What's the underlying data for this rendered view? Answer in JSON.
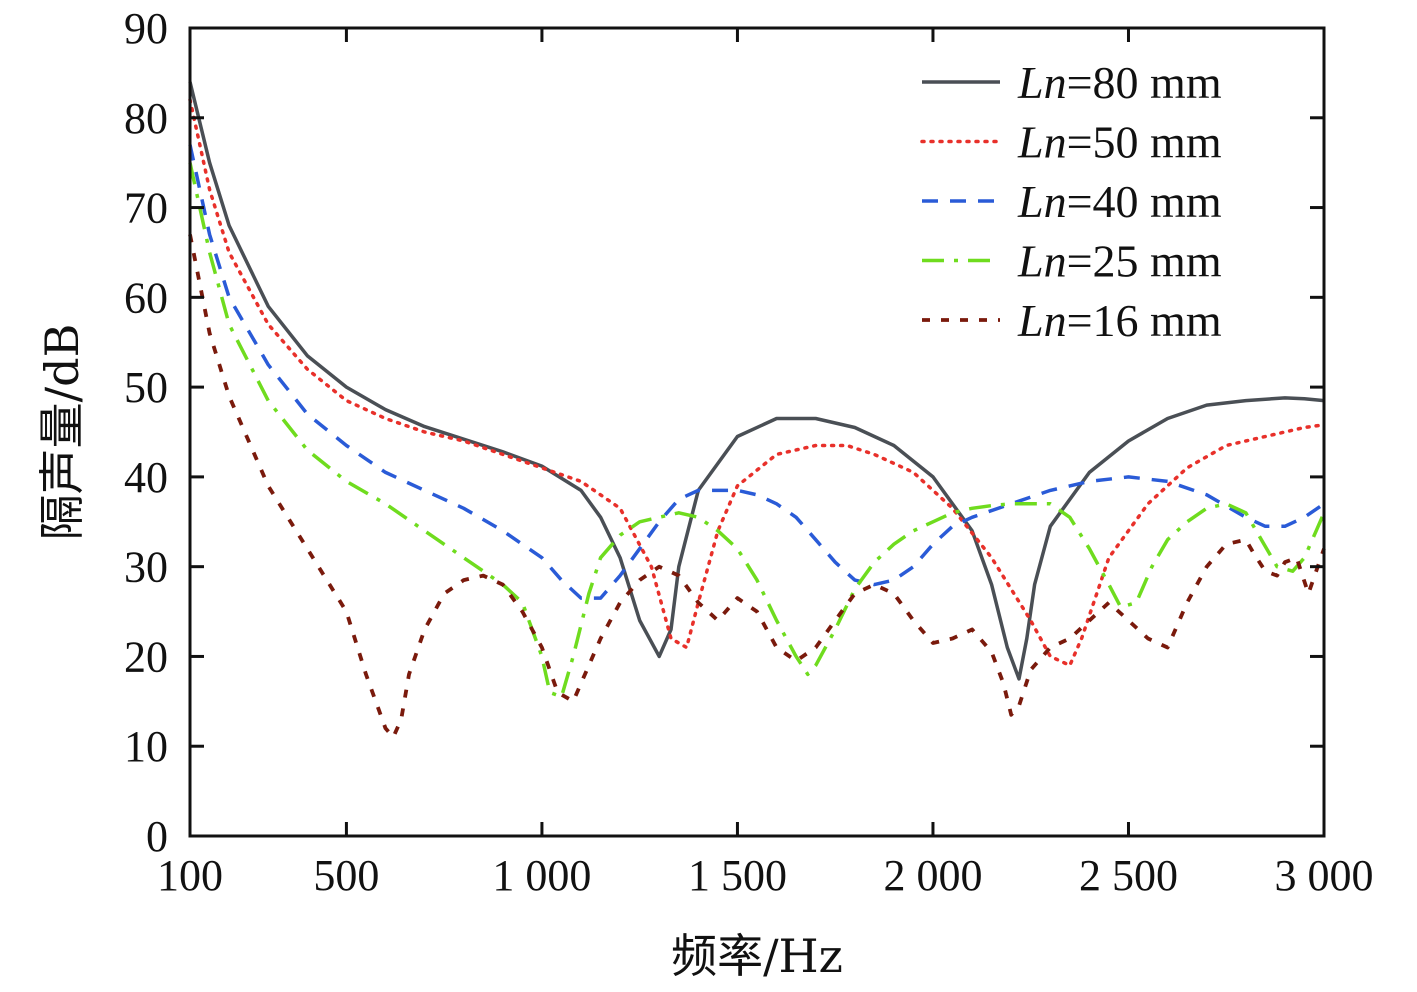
{
  "chart_data": {
    "type": "line",
    "title": "",
    "xlabel": "频率/Hz",
    "ylabel": "隔声量/dB",
    "xlim": [
      100,
      3000
    ],
    "ylim": [
      0,
      90
    ],
    "x_ticks": [
      100,
      500,
      1000,
      1500,
      2000,
      2500,
      3000
    ],
    "x_tick_labels": [
      "100",
      "500",
      "1 000",
      "1 500",
      "2 000",
      "2 500",
      "3 000"
    ],
    "y_ticks": [
      0,
      10,
      20,
      30,
      40,
      50,
      60,
      70,
      80,
      90
    ],
    "y_tick_labels": [
      "0",
      "10",
      "20",
      "30",
      "40",
      "50",
      "60",
      "70",
      "80",
      "90"
    ],
    "legend_position": "top-right",
    "series": [
      {
        "name": "Ln=80 mm",
        "label_italic": "Ln",
        "label_rest": "=80 mm",
        "color": "#4a4f55",
        "dash": "solid",
        "x": [
          100,
          150,
          200,
          300,
          400,
          500,
          600,
          700,
          800,
          900,
          1000,
          1100,
          1150,
          1200,
          1250,
          1300,
          1330,
          1350,
          1400,
          1500,
          1600,
          1700,
          1800,
          1900,
          2000,
          2100,
          2150,
          2190,
          2220,
          2240,
          2260,
          2300,
          2400,
          2500,
          2600,
          2700,
          2800,
          2900,
          2950,
          3000
        ],
        "y": [
          84,
          75,
          68,
          59,
          53.5,
          50,
          47.5,
          45.6,
          44.2,
          42.8,
          41.2,
          38.5,
          35.5,
          31,
          24,
          20,
          23,
          30,
          38.5,
          44.5,
          46.5,
          46.5,
          45.5,
          43.5,
          40,
          34,
          28,
          21,
          17.5,
          22,
          28,
          34.5,
          40.5,
          44,
          46.5,
          48,
          48.5,
          48.8,
          48.7,
          48.5
        ]
      },
      {
        "name": "Ln=50 mm",
        "label_italic": "Ln",
        "label_rest": "=50 mm",
        "color": "#e8302a",
        "dash": "dotted",
        "x": [
          100,
          150,
          200,
          300,
          400,
          500,
          600,
          700,
          800,
          900,
          1000,
          1100,
          1200,
          1280,
          1330,
          1370,
          1400,
          1450,
          1500,
          1600,
          1700,
          1780,
          1850,
          1950,
          2050,
          2150,
          2250,
          2300,
          2350,
          2380,
          2450,
          2550,
          2650,
          2750,
          2850,
          2950,
          3000
        ],
        "y": [
          82,
          72,
          65,
          57,
          52,
          48.5,
          46.5,
          45,
          44,
          42.5,
          41,
          39.5,
          36.5,
          30,
          22,
          21,
          26,
          34,
          39,
          42.5,
          43.5,
          43.5,
          42.5,
          40.5,
          36.5,
          31,
          24,
          20,
          19,
          22,
          31,
          37,
          41,
          43.5,
          44.5,
          45.5,
          45.8
        ]
      },
      {
        "name": "Ln=40 mm",
        "label_italic": "Ln",
        "label_rest": "=40 mm",
        "color": "#2a5bd7",
        "dash": "dashed",
        "x": [
          100,
          150,
          200,
          300,
          400,
          500,
          600,
          700,
          800,
          900,
          1000,
          1050,
          1100,
          1150,
          1200,
          1250,
          1300,
          1350,
          1400,
          1450,
          1500,
          1550,
          1600,
          1650,
          1700,
          1750,
          1800,
          1850,
          1900,
          1950,
          2000,
          2050,
          2100,
          2200,
          2300,
          2400,
          2500,
          2600,
          2700,
          2800,
          2850,
          2900,
          2950,
          3000
        ],
        "y": [
          77,
          67,
          60,
          52.5,
          47,
          43.5,
          40.5,
          38.5,
          36.5,
          34,
          31,
          28.5,
          26.5,
          26.5,
          29,
          32,
          35,
          37.5,
          38.5,
          38.5,
          38.5,
          38,
          37,
          35.5,
          33,
          30.5,
          28.5,
          28,
          28.5,
          30,
          32.5,
          34.5,
          35.5,
          37,
          38.5,
          39.5,
          40,
          39.5,
          38,
          35.5,
          34.5,
          34.5,
          35.5,
          37
        ]
      },
      {
        "name": "Ln=25 mm",
        "label_italic": "Ln",
        "label_rest": "=25 mm",
        "color": "#6fdc1e",
        "dash": "dashdot",
        "x": [
          100,
          150,
          200,
          300,
          400,
          500,
          600,
          700,
          800,
          850,
          900,
          950,
          1000,
          1020,
          1050,
          1080,
          1120,
          1150,
          1200,
          1250,
          1300,
          1350,
          1400,
          1450,
          1500,
          1550,
          1600,
          1650,
          1680,
          1700,
          1750,
          1800,
          1850,
          1900,
          1950,
          2000,
          2050,
          2100,
          2150,
          2200,
          2250,
          2300,
          2350,
          2400,
          2450,
          2480,
          2520,
          2560,
          2600,
          2650,
          2700,
          2750,
          2800,
          2840,
          2880,
          2920,
          2950,
          2980,
          3000
        ],
        "y": [
          75,
          65,
          57,
          48.5,
          43,
          39.5,
          37,
          34,
          31,
          29.5,
          28,
          26,
          20,
          16,
          15.5,
          20,
          27,
          31,
          33.5,
          35,
          35.5,
          36,
          35.5,
          34,
          32,
          28.5,
          24,
          20,
          18,
          19,
          23,
          27.5,
          30.5,
          32.5,
          34,
          35,
          36,
          36.5,
          36.8,
          37,
          37,
          37,
          35.5,
          32,
          28,
          25.5,
          26,
          30,
          33,
          35,
          36.5,
          37,
          36,
          33,
          30,
          29.5,
          31,
          34,
          36
        ]
      },
      {
        "name": "Ln=16 mm",
        "label_italic": "Ln",
        "label_rest": "=16 mm",
        "color": "#7a1a0c",
        "dash": "shortdash",
        "x": [
          100,
          150,
          200,
          300,
          400,
          500,
          550,
          600,
          620,
          640,
          660,
          700,
          750,
          800,
          850,
          900,
          950,
          1000,
          1040,
          1080,
          1100,
          1150,
          1200,
          1250,
          1300,
          1350,
          1400,
          1450,
          1500,
          1550,
          1600,
          1650,
          1700,
          1750,
          1800,
          1850,
          1900,
          1950,
          2000,
          2050,
          2100,
          2150,
          2180,
          2200,
          2220,
          2250,
          2300,
          2350,
          2400,
          2450,
          2500,
          2550,
          2600,
          2650,
          2700,
          2750,
          2800,
          2820,
          2850,
          2880,
          2900,
          2930,
          2960,
          3000
        ],
        "y": [
          67,
          56,
          49,
          39,
          32,
          25,
          18,
          12,
          11,
          13,
          18,
          23,
          27,
          28.5,
          29,
          28,
          25,
          21,
          16,
          15,
          17,
          22,
          26,
          28.5,
          30,
          29,
          26,
          24,
          26.5,
          25,
          21,
          19.5,
          21,
          24,
          27,
          28,
          27,
          24,
          21.5,
          22,
          23,
          20.5,
          17,
          13.5,
          14.5,
          18.5,
          21,
          22,
          24,
          26,
          24,
          22,
          21,
          26,
          30,
          32.5,
          33,
          31.5,
          29.5,
          29,
          30.5,
          31,
          27,
          32
        ]
      }
    ]
  }
}
